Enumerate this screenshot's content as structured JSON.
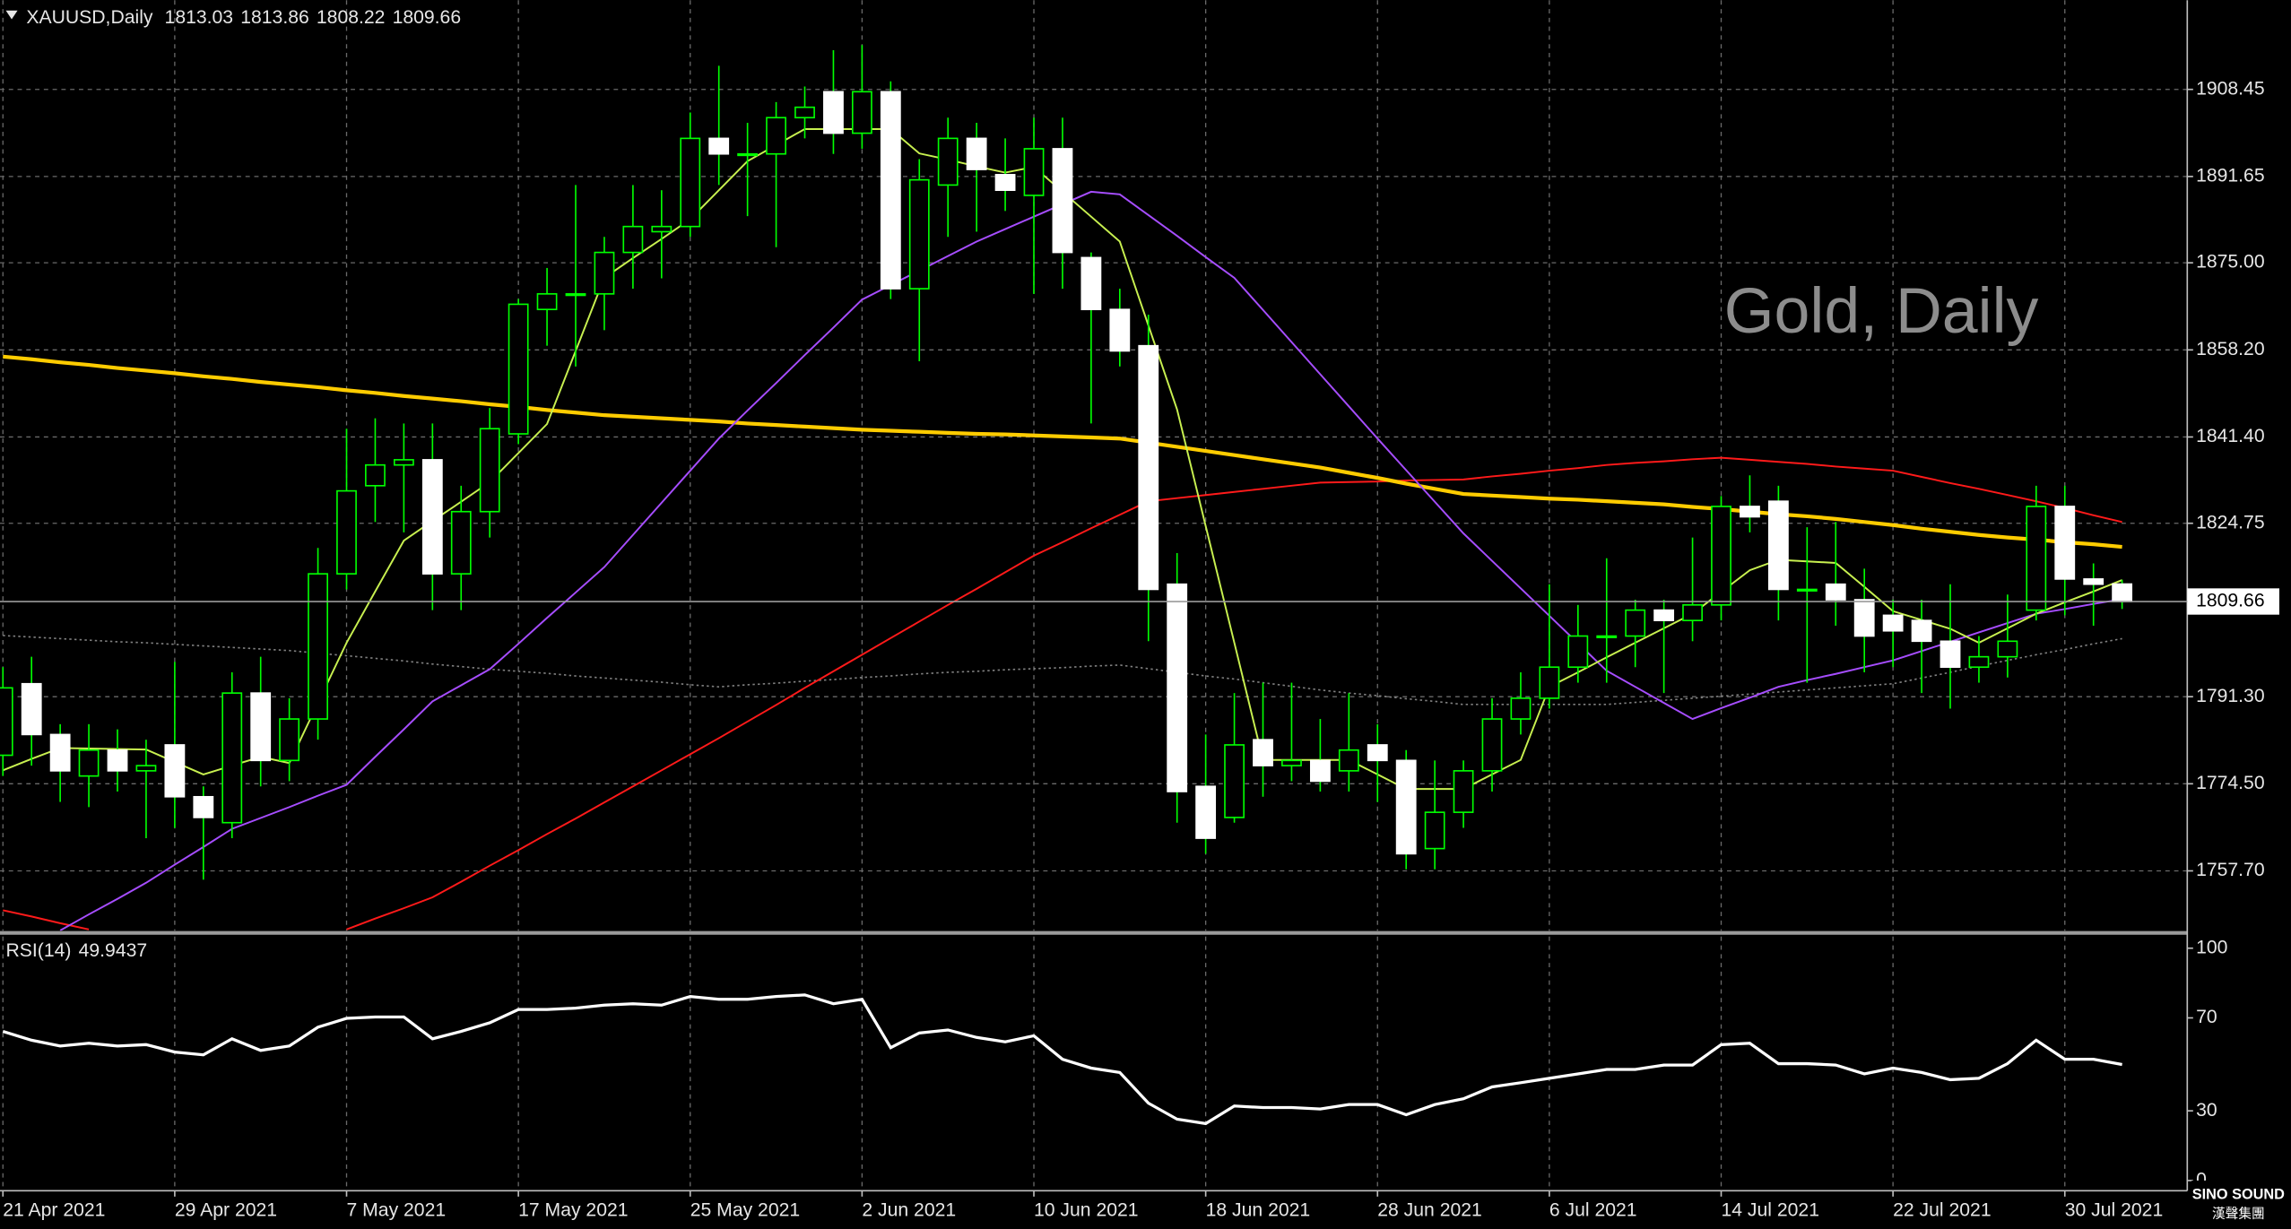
{
  "chart_data": [
    {
      "type": "candlestick",
      "title": "XAUUSD,Daily",
      "watermark": "Gold, Daily",
      "categories": [
        "21 Apr 2021",
        null,
        null,
        null,
        null,
        null,
        "29 Apr 2021",
        null,
        null,
        null,
        null,
        null,
        "7 May 2021",
        null,
        null,
        null,
        null,
        null,
        "17 May 2021",
        null,
        null,
        null,
        null,
        null,
        "25 May 2021",
        null,
        null,
        null,
        null,
        null,
        "2 Jun 2021",
        null,
        null,
        null,
        null,
        null,
        "10 Jun 2021",
        null,
        null,
        null,
        null,
        null,
        "18 Jun 2021",
        null,
        null,
        null,
        null,
        null,
        "28 Jun 2021",
        null,
        null,
        null,
        null,
        null,
        "6 Jul 2021",
        null,
        null,
        null,
        null,
        null,
        "14 Jul 2021",
        null,
        null,
        null,
        null,
        null,
        "22 Jul 2021",
        null,
        null,
        null,
        null,
        null,
        "30 Jul 2021",
        null,
        null
      ],
      "open": [
        1780,
        1793.8,
        1784,
        1776,
        1781,
        1777,
        1782,
        1772,
        1767,
        1792,
        1779,
        1787,
        1815,
        1832,
        1836,
        1837,
        1815,
        1827,
        1842,
        1866,
        1869,
        1869,
        1877,
        1881,
        1882,
        1899,
        1896,
        1896,
        1903,
        1908,
        1900,
        1908,
        1870,
        1890,
        1899,
        1892,
        1888,
        1897,
        1876,
        1866,
        1859,
        1813,
        1774,
        1768,
        1783,
        1778,
        1779,
        1777,
        1782,
        1779,
        1762,
        1769,
        1777,
        1787,
        1791,
        1797,
        1803,
        1803,
        1808,
        1806,
        1809,
        1828,
        1829,
        1812,
        1813,
        1810,
        1807,
        1806,
        1802,
        1797,
        1799,
        1808,
        1828,
        1814,
        1813.03
      ],
      "high": [
        1797,
        1799,
        1786,
        1786,
        1785,
        1783,
        1798,
        1774,
        1796,
        1799,
        1791,
        1820,
        1843,
        1845,
        1844,
        1844,
        1832,
        1847,
        1868,
        1874,
        1890,
        1880,
        1890,
        1889,
        1904,
        1913,
        1902,
        1906,
        1909,
        1916,
        1917,
        1910,
        1895,
        1903,
        1902,
        1899,
        1903,
        1903,
        1877,
        1870,
        1865,
        1819,
        1784,
        1792,
        1794,
        1794,
        1787,
        1792,
        1786,
        1781,
        1779,
        1779,
        1791,
        1796,
        1813,
        1809,
        1818,
        1810,
        1810,
        1822,
        1830,
        1834,
        1832,
        1824,
        1825,
        1816,
        1810,
        1810,
        1813,
        1803,
        1811,
        1832,
        1832,
        1817,
        1813.86
      ],
      "low": [
        1776,
        1778,
        1771,
        1770,
        1773,
        1764,
        1766,
        1756,
        1764,
        1774,
        1775,
        1783,
        1812,
        1825,
        1823,
        1808,
        1808,
        1822,
        1840,
        1859,
        1855,
        1862,
        1870,
        1872,
        1880,
        1890,
        1884,
        1878,
        1899,
        1896,
        1897,
        1868,
        1856,
        1880,
        1881,
        1885,
        1869,
        1870,
        1844,
        1855,
        1802,
        1767,
        1761,
        1767,
        1772,
        1775,
        1773,
        1773,
        1771,
        1758,
        1758,
        1766,
        1773,
        1784,
        1789,
        1794,
        1794,
        1797,
        1792,
        1802,
        1806,
        1823,
        1806,
        1794,
        1805,
        1796,
        1797,
        1792,
        1789,
        1794,
        1795,
        1806,
        1807,
        1805,
        1808.22
      ],
      "close": [
        1793,
        1784,
        1777,
        1781,
        1777,
        1778,
        1772,
        1768,
        1792,
        1779,
        1787,
        1815,
        1831,
        1836,
        1837,
        1815,
        1827,
        1843,
        1867,
        1869,
        1869,
        1877,
        1882,
        1882,
        1899,
        1896,
        1896,
        1903,
        1905,
        1900,
        1908,
        1870,
        1891,
        1899,
        1893,
        1889,
        1897,
        1877,
        1866,
        1858,
        1812,
        1773,
        1764,
        1782,
        1778,
        1779,
        1775,
        1781,
        1779,
        1761,
        1769,
        1777,
        1787,
        1791,
        1797,
        1803,
        1803,
        1808,
        1806,
        1809,
        1828,
        1826,
        1812,
        1812,
        1810,
        1803,
        1804,
        1802,
        1797,
        1799,
        1802,
        1828,
        1814,
        1813,
        1809.66
      ],
      "up_color": "#000000",
      "down_color": "#ffffff",
      "wick_color": "#00ff00",
      "series": [
        {
          "color": "#808080",
          "line_width": 1,
          "style": "dotted",
          "values": [
            1803.1,
            1802.8,
            1802.5,
            1802.2,
            1801.9,
            1801.7,
            1801.4,
            1801.1,
            1800.8,
            1800.5,
            1800.2,
            1799.7,
            1799.2,
            1798.7,
            1798.2,
            1797.6,
            1797.1,
            1796.6,
            1796.2,
            1795.8,
            1795.3,
            1794.9,
            1794.5,
            1794.1,
            1793.6,
            1793.2,
            1793.6,
            1793.9,
            1794.3,
            1794.6,
            1795.0,
            1795.3,
            1795.7,
            1796.0,
            1796.2,
            1796.5,
            1796.7,
            1796.9,
            1797.2,
            1797.4,
            1796.7,
            1796.0,
            1795.3,
            1794.7,
            1794.0,
            1793.3,
            1792.6,
            1792.0,
            1791.5,
            1790.9,
            1790.4,
            1789.8,
            1789.8,
            1789.8,
            1789.8,
            1789.8,
            1789.8,
            1790.2,
            1790.6,
            1791.0,
            1791.4,
            1791.8,
            1792.2,
            1792.6,
            1793.0,
            1793.4,
            1793.8,
            1794.9,
            1796.0,
            1797.2,
            1798.3,
            1799.4,
            1800.4,
            1801.5,
            1802.5
          ]
        },
        {
          "color": "#ff1a1a",
          "line_width": 1.2,
          "values": [
            1750.1,
            1748.9,
            1747.6,
            1746.4,
            null,
            null,
            null,
            null,
            null,
            null,
            null,
            null,
            1746.4,
            1748.5,
            1750.5,
            1752.6,
            1755.6,
            1758.7,
            1761.7,
            1764.8,
            1767.8,
            1770.9,
            1774.0,
            1777.1,
            1780.2,
            1783.3,
            1786.5,
            1789.7,
            1793.0,
            1796.2,
            1799.4,
            1802.6,
            1805.8,
            1809.0,
            1812.1,
            1815.3,
            1818.5,
            1821.1,
            1823.8,
            1826.4,
            1829.0,
            1829.6,
            1830.2,
            1830.8,
            1831.4,
            1832.0,
            1832.6,
            1832.7,
            1832.8,
            1833.0,
            1833.1,
            1833.2,
            1833.8,
            1834.3,
            1834.9,
            1835.4,
            1836.0,
            1836.4,
            1836.7,
            1837.1,
            1837.4,
            1837.0,
            1836.6,
            1836.2,
            1835.7,
            1835.3,
            1834.9,
            1833.7,
            1832.5,
            1831.4,
            1830.2,
            1829.0,
            1827.7,
            1826.3,
            1825.0
          ]
        },
        {
          "color": "#ffcc00",
          "line_width": 2.6,
          "values": [
            1856.9,
            1856.4,
            1855.8,
            1855.3,
            1854.7,
            1854.2,
            1853.7,
            1853.1,
            1852.6,
            1852.0,
            1851.5,
            1851.0,
            1850.4,
            1849.9,
            1849.3,
            1848.8,
            1848.3,
            1847.7,
            1847.2,
            1846.6,
            1846.1,
            1845.6,
            1845.3,
            1845.0,
            1844.7,
            1844.4,
            1844.0,
            1843.7,
            1843.4,
            1843.1,
            1842.8,
            1842.6,
            1842.4,
            1842.2,
            1842.0,
            1841.9,
            1841.7,
            1841.5,
            1841.3,
            1841.1,
            1840.3,
            1839.5,
            1838.7,
            1837.9,
            1837.1,
            1836.3,
            1835.5,
            1834.5,
            1833.5,
            1832.4,
            1831.4,
            1830.4,
            1830.1,
            1829.8,
            1829.5,
            1829.3,
            1829.0,
            1828.7,
            1828.4,
            1827.9,
            1827.5,
            1827.0,
            1826.5,
            1826.1,
            1825.6,
            1825.0,
            1824.4,
            1823.7,
            1823.1,
            1822.5,
            1822.0,
            1821.6,
            1821.1,
            1820.7,
            1820.2
          ]
        },
        {
          "color": "#a64dff",
          "line_width": 1.2,
          "values": [
            null,
            null,
            1746.2,
            1749.3,
            1752.3,
            1755.4,
            1758.9,
            1762.3,
            1765.8,
            1767.9,
            1770.0,
            1772.2,
            1774.3,
            1779.7,
            1785.0,
            1790.4,
            1793.5,
            1796.6,
            1801.5,
            1806.5,
            1811.4,
            1816.3,
            1822.5,
            1828.7,
            1834.9,
            1841.1,
            1846.5,
            1851.8,
            1857.2,
            1862.5,
            1867.9,
            1870.7,
            1873.5,
            1876.3,
            1879.1,
            1881.5,
            1883.9,
            1886.3,
            1888.7,
            1888.2,
            1884.2,
            1880.2,
            1876.1,
            1872.1,
            1865.9,
            1859.7,
            1853.5,
            1847.3,
            1841.1,
            1835.0,
            1828.9,
            1822.8,
            1817.5,
            1812.2,
            1806.9,
            1801.6,
            1796.3,
            1793.2,
            1790.1,
            1787.0,
            1789.1,
            1791.1,
            1793.2,
            1794.5,
            1795.7,
            1797.0,
            1798.3,
            1800.1,
            1801.9,
            1803.7,
            1805.5,
            1807.3,
            1808.2,
            1809.2,
            1810.1
          ]
        },
        {
          "color": "#c8f050",
          "line_width": 1.2,
          "values": [
            1777.1,
            1779.3,
            1781.4,
            1781.3,
            1781.2,
            1781.1,
            1778.7,
            1776.3,
            1778.0,
            1779.7,
            1778.5,
            1790.1,
            1801.7,
            1811.6,
            1821.4,
            1825.2,
            1828.9,
            1832.7,
            1838.3,
            1843.9,
            1858.0,
            1872.1,
            1875.9,
            1879.6,
            1883.4,
            1889.0,
            1894.6,
            1897.7,
            1900.8,
            1900.8,
            1900.8,
            1900.8,
            1896.1,
            1894.9,
            1893.6,
            1892.4,
            1893.5,
            1888.7,
            1883.9,
            1879.1,
            1862.9,
            1846.7,
            1824.2,
            1801.7,
            1779.1,
            1779.1,
            1779.1,
            1779.1,
            1776.3,
            1773.5,
            1773.5,
            1773.5,
            1776.3,
            1779.1,
            1793.2,
            1796.0,
            1798.9,
            1801.7,
            1804.5,
            1807.3,
            1811.5,
            1815.7,
            1817.7,
            1817.4,
            1817.1,
            1812.5,
            1807.8,
            1806.1,
            1804.4,
            1801.7,
            1804.5,
            1807.3,
            1809.5,
            1811.6,
            1813.8
          ]
        }
      ],
      "ylim": [
        1746.15,
        1925.64
      ],
      "yticks": [
        1908.45,
        1891.65,
        {
          "value": 1875,
          "label": "1875.00"
        },
        {
          "value": 1858.2,
          "label": "1858.20"
        },
        {
          "value": 1841.4,
          "label": "1841.40"
        },
        1824.75,
        {
          "value": 1791.3,
          "label": "1791.30"
        },
        {
          "value": 1774.5,
          "label": "1774.50"
        },
        {
          "value": 1757.7,
          "label": "1757.70"
        }
      ],
      "grid": true
    },
    {
      "type": "line",
      "title": "RSI(14)",
      "color": "#ffffff",
      "values": [
        64.2,
        60.4,
        57.9,
        59.1,
        57.9,
        58.5,
        55.3,
        54.1,
        61.0,
        56.0,
        57.9,
        66.0,
        69.8,
        70.4,
        70.4,
        61.0,
        64.2,
        67.9,
        73.6,
        73.6,
        74.2,
        75.5,
        76.1,
        75.5,
        79.2,
        78.0,
        78.0,
        79.2,
        79.9,
        76.1,
        78.0,
        57.2,
        63.5,
        64.8,
        61.6,
        59.7,
        62.3,
        52.2,
        48.4,
        46.5,
        33.3,
        26.4,
        24.5,
        32.1,
        31.4,
        31.4,
        30.8,
        32.7,
        32.7,
        28.3,
        32.7,
        35.2,
        40.3,
        42.1,
        44.0,
        45.9,
        47.8,
        47.8,
        49.7,
        49.7,
        58.5,
        59.1,
        50.3,
        50.3,
        49.7,
        45.9,
        48.4,
        46.5,
        43.4,
        44.0,
        50.3,
        60.4,
        52.2,
        52.2,
        49.9437
      ],
      "ylim": [
        -4.4,
        105
      ],
      "yticks": [
        100,
        70,
        30,
        0
      ],
      "grid": true
    }
  ],
  "logo": {
    "name": "SINO SOUND",
    "subtitle": "漢聲集團"
  }
}
